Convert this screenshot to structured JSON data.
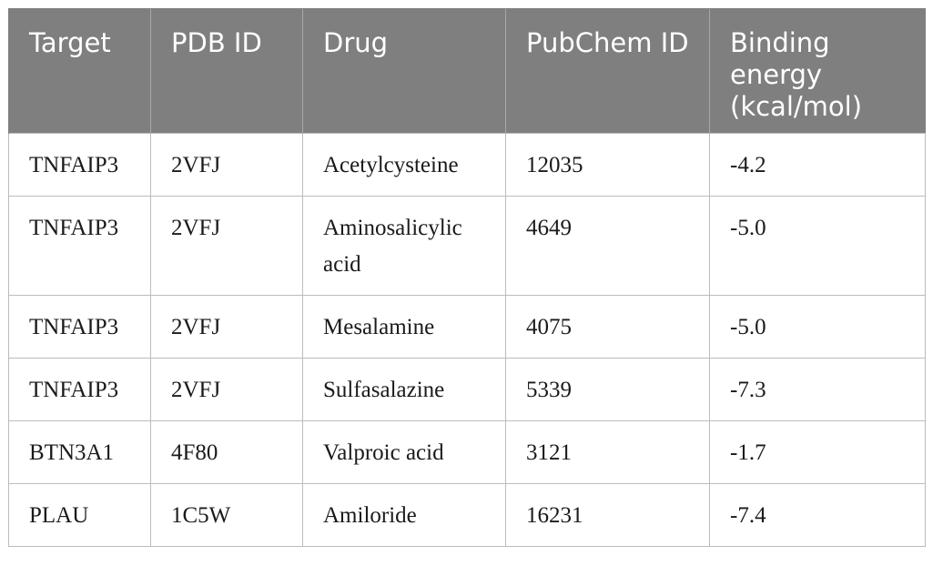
{
  "table": {
    "headers": [
      "Target",
      "PDB ID",
      "Drug",
      "PubChem ID",
      "Binding energy (kcal/mol)"
    ],
    "rows": [
      [
        "TNFAIP3",
        "2VFJ",
        "Acetylcysteine",
        "12035",
        "-4.2"
      ],
      [
        "TNFAIP3",
        "2VFJ",
        "Aminosalicylic acid",
        "4649",
        "-5.0"
      ],
      [
        "TNFAIP3",
        "2VFJ",
        "Mesalamine",
        "4075",
        "-5.0"
      ],
      [
        "TNFAIP3",
        "2VFJ",
        "Sulfasalazine",
        "5339",
        "-7.3"
      ],
      [
        "BTN3A1",
        "4F80",
        "Valproic acid",
        "3121",
        "-1.7"
      ],
      [
        "PLAU",
        "1C5W",
        "Amiloride",
        "16231",
        "-7.4"
      ]
    ]
  },
  "colors": {
    "header_background": "#7f7f7f",
    "header_text": "#ffffff",
    "border": "#bcbcbc"
  }
}
